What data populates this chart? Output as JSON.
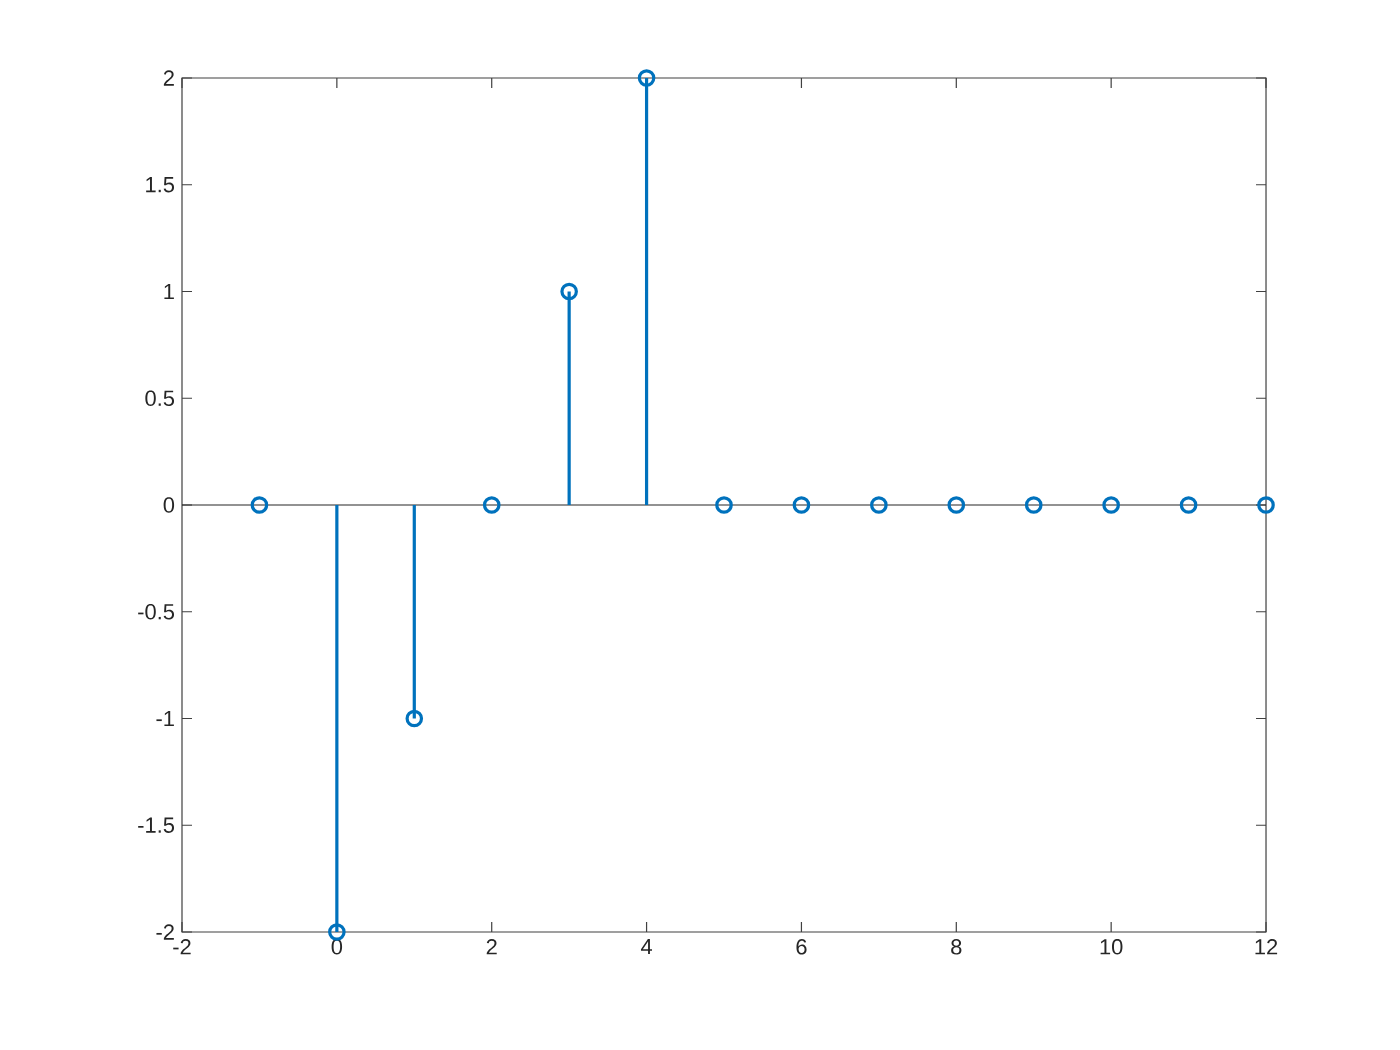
{
  "chart_data": {
    "type": "lollipop",
    "color": "#0072bd",
    "marker": "circle",
    "line_style": "solid",
    "ref_lines": [
      {
        "axis": "y",
        "value": 0,
        "color": "#262626"
      }
    ],
    "x": [
      -1,
      0,
      1,
      2,
      3,
      4,
      5,
      6,
      7,
      8,
      9,
      10,
      11,
      12
    ],
    "values": [
      0,
      -2,
      -1,
      0,
      1,
      2,
      0,
      0,
      0,
      0,
      0,
      0,
      0,
      0
    ],
    "xlim": [
      -2,
      12
    ],
    "ylim": [
      -2,
      2
    ],
    "xticks": [
      -2,
      0,
      2,
      4,
      6,
      8,
      10,
      12
    ],
    "yticks": [
      -2,
      -1.5,
      -1,
      -0.5,
      0,
      0.5,
      1,
      1.5,
      2
    ]
  }
}
